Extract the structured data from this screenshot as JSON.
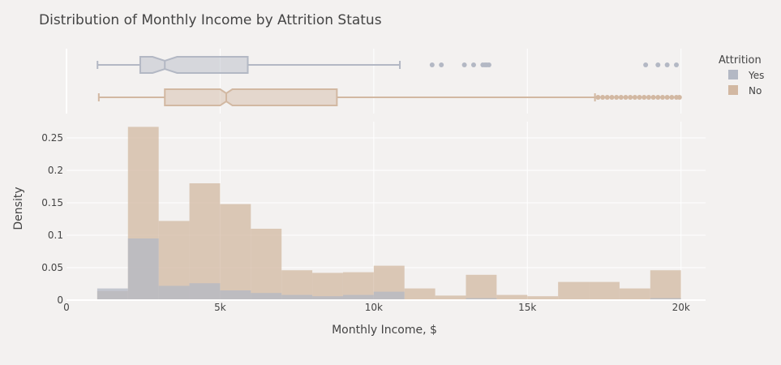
{
  "chart_data": {
    "type": "histogram",
    "title": "Distribution of Monthly Income by Attrition Status",
    "xlabel": "Monthly Income, $",
    "ylabel": "Density",
    "xlim": [
      0,
      20800
    ],
    "ylim": [
      0,
      0.275
    ],
    "x_ticks": [
      {
        "value": 0,
        "label": "0"
      },
      {
        "value": 5000,
        "label": "5k"
      },
      {
        "value": 10000,
        "label": "10k"
      },
      {
        "value": 15000,
        "label": "15k"
      },
      {
        "value": 20000,
        "label": "20k"
      }
    ],
    "y_ticks": [
      {
        "value": 0,
        "label": "0"
      },
      {
        "value": 0.05,
        "label": "0.05"
      },
      {
        "value": 0.1,
        "label": "0.1"
      },
      {
        "value": 0.15,
        "label": "0.15"
      },
      {
        "value": 0.2,
        "label": "0.2"
      },
      {
        "value": 0.25,
        "label": "0.25"
      }
    ],
    "grid": true,
    "legend": {
      "title": "Attrition",
      "placement": "right"
    },
    "bin_edges": [
      1000,
      2000,
      3000,
      4000,
      5000,
      6000,
      7000,
      8000,
      9000,
      10000,
      11000,
      12000,
      13000,
      14000,
      15000,
      16000,
      17000,
      18000,
      19000,
      20000
    ],
    "series": [
      {
        "name": "Yes",
        "color": "#b3b8c4",
        "density": [
          0.018,
          0.095,
          0.022,
          0.026,
          0.015,
          0.011,
          0.008,
          0.006,
          0.008,
          0.013,
          0.0,
          0.0,
          0.003,
          0.0,
          0.0,
          0.0,
          0.0,
          0.0,
          0.003
        ],
        "box": {
          "min": 1009,
          "q1": 2400,
          "median": 3200,
          "q3": 5900,
          "max": 10850,
          "notch_low": 2800,
          "notch_high": 3600,
          "outliers": [
            11900,
            12200,
            12950,
            13250,
            13550,
            13620,
            13680,
            13750,
            18850,
            19250,
            19550,
            19850
          ]
        }
      },
      {
        "name": "No",
        "color": "#d2b8a2",
        "density": [
          0.014,
          0.267,
          0.122,
          0.18,
          0.148,
          0.11,
          0.046,
          0.042,
          0.043,
          0.053,
          0.018,
          0.007,
          0.039,
          0.008,
          0.006,
          0.028,
          0.028,
          0.018,
          0.046
        ],
        "box": {
          "min": 1051,
          "q1": 3200,
          "median": 5200,
          "q3": 8800,
          "max": 17200,
          "notch_low": 5000,
          "notch_high": 5400,
          "outliers": [
            17300,
            17450,
            17600,
            17750,
            17900,
            18050,
            18200,
            18350,
            18500,
            18650,
            18800,
            18950,
            19100,
            19250,
            19400,
            19550,
            19700,
            19850,
            19950
          ]
        }
      }
    ]
  }
}
